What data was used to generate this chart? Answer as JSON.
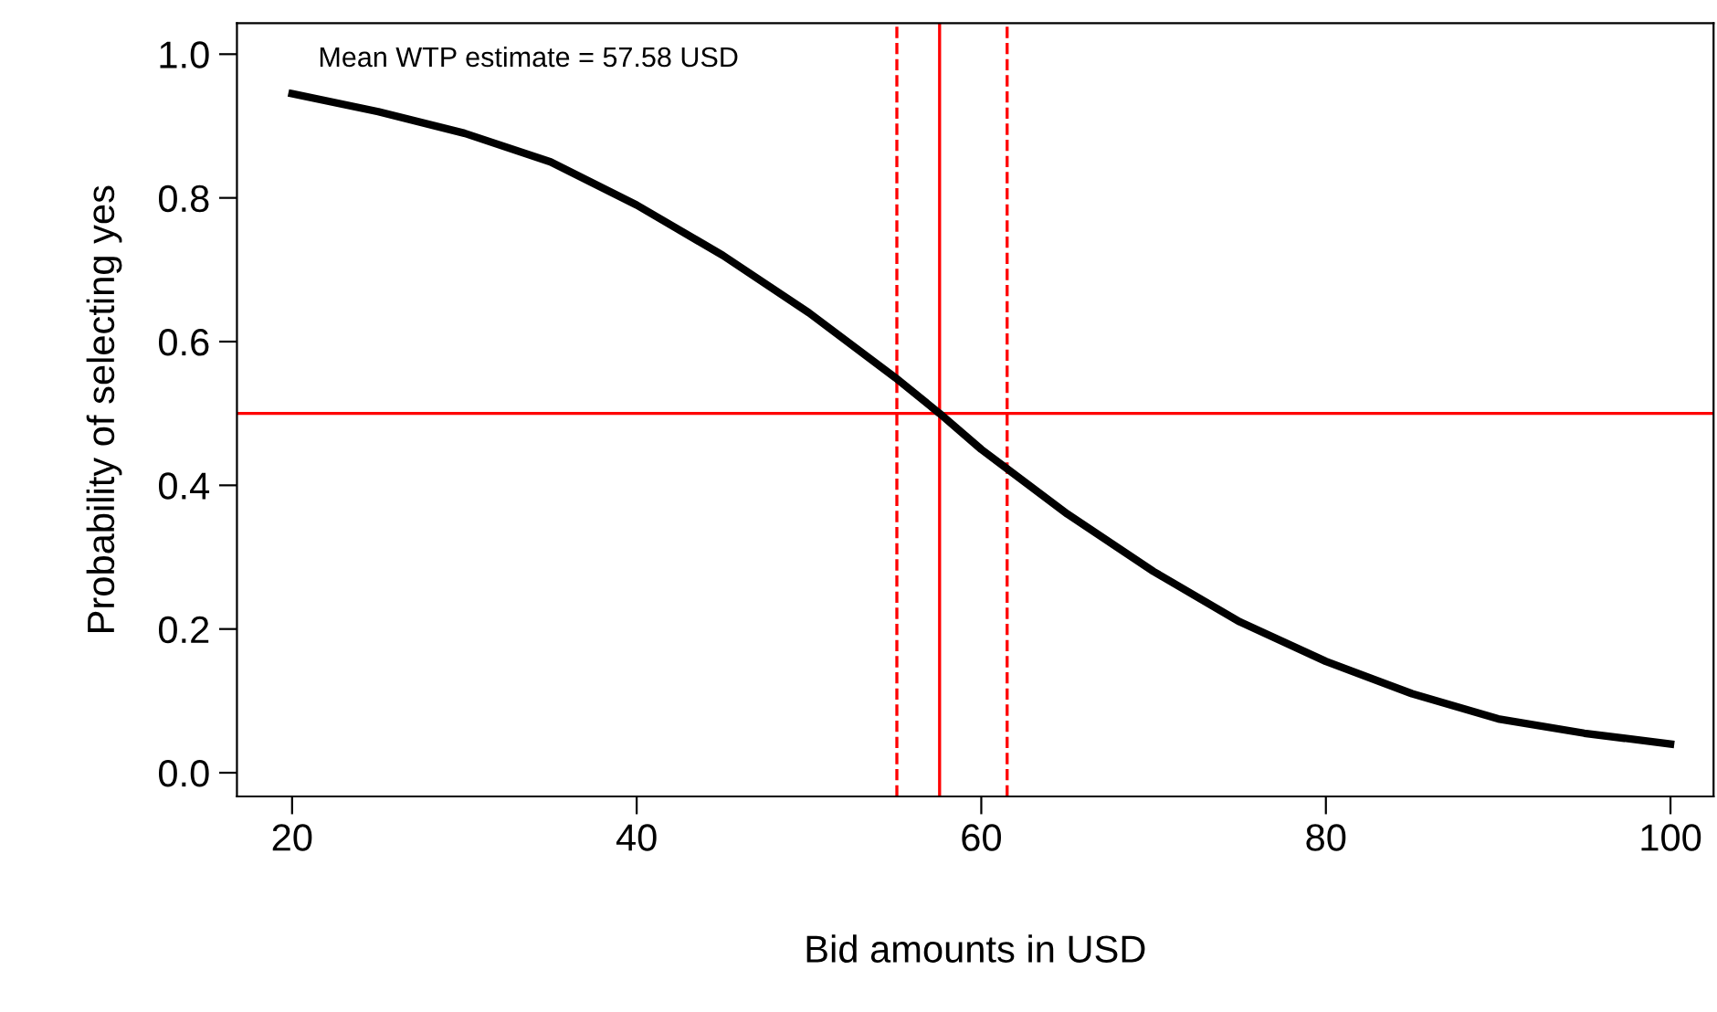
{
  "chart_data": {
    "type": "line",
    "xlabel": "Bid amounts in USD",
    "ylabel": "Probability of selecting yes",
    "annotations": [
      "Mean WTP estimate = 57.58 USD"
    ],
    "x": [
      20,
      25,
      30,
      35,
      40,
      45,
      50,
      55,
      57.58,
      60,
      65,
      70,
      75,
      80,
      85,
      90,
      95,
      100
    ],
    "series": [
      {
        "color": "#000000",
        "values": [
          0.945,
          0.92,
          0.89,
          0.85,
          0.79,
          0.72,
          0.64,
          0.55,
          0.5,
          0.45,
          0.36,
          0.28,
          0.21,
          0.155,
          0.11,
          0.075,
          0.055,
          0.04
        ]
      }
    ],
    "xlim": [
      16.8,
      102.5
    ],
    "ylim": [
      -0.033,
      1.043
    ],
    "xticks": [
      20,
      40,
      60,
      80,
      100
    ],
    "yticks": [
      {
        "value": 0,
        "label": "0.0"
      },
      {
        "value": 0.2,
        "label": "0.2"
      },
      {
        "value": 0.4,
        "label": "0.4"
      },
      {
        "value": 0.6,
        "label": "0.6"
      },
      {
        "value": 0.8,
        "label": "0.8"
      },
      {
        "value": 1,
        "label": "1.0"
      }
    ],
    "ref_lines": [
      {
        "axis": "y",
        "value": 0.5,
        "color": "#ff0000",
        "line_style": "solid"
      },
      {
        "axis": "x",
        "value": 57.58,
        "color": "#ff0000",
        "line_style": "solid"
      },
      {
        "axis": "x",
        "value": 55.1,
        "color": "#ff0000",
        "line_style": "dashed"
      },
      {
        "axis": "x",
        "value": 61.5,
        "color": "#ff0000",
        "line_style": "dashed"
      }
    ],
    "grid": false,
    "legend": false,
    "marker": "none",
    "line_style": "solid"
  }
}
